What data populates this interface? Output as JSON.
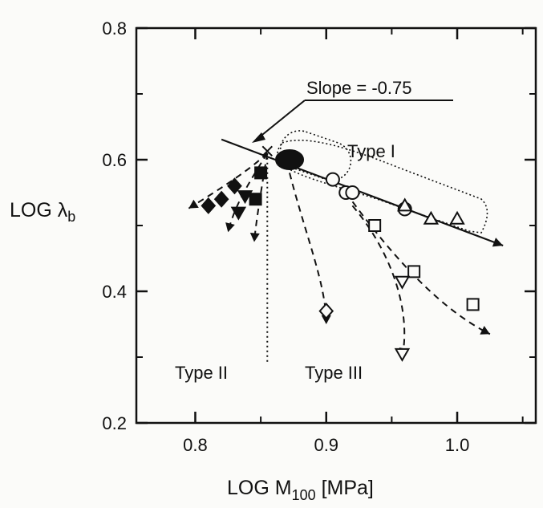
{
  "chart_data": {
    "type": "scatter",
    "title": "",
    "xlabel": "LOG M",
    "xlabel_sub": "100",
    "xlabel_unit": " [MPa]",
    "ylabel": "LOG λ",
    "ylabel_sub": "b",
    "xlim": [
      0.755,
      1.06
    ],
    "ylim": [
      0.2,
      0.8
    ],
    "x_ticks": [
      0.8,
      0.9,
      1.0
    ],
    "x_tick_labels": [
      "0.8",
      "0.9",
      "1.0"
    ],
    "y_ticks": [
      0.2,
      0.4,
      0.6,
      0.8
    ],
    "y_tick_labels": [
      "0.2",
      "0.4",
      "0.6",
      "0.8"
    ],
    "grid": false,
    "slope_label": "Slope = -0.75",
    "type_labels": {
      "type_i": "Type I",
      "type_ii": "Type II",
      "type_iii": "Type III"
    },
    "fit_line": {
      "slope": -0.75,
      "x": [
        0.82,
        1.035
      ],
      "y": [
        0.6308,
        0.4695
      ]
    },
    "type_ii_boundary_x": 0.855,
    "series": [
      {
        "marker": "ellipse-filled",
        "x": [
          0.872
        ],
        "y": [
          0.6
        ]
      },
      {
        "marker": "circle-open",
        "x": [
          0.905,
          0.915,
          0.92,
          0.96
        ],
        "y": [
          0.57,
          0.55,
          0.55,
          0.525
        ]
      },
      {
        "marker": "triangle-up-open",
        "x": [
          0.96,
          0.98,
          1.0
        ],
        "y": [
          0.53,
          0.51,
          0.51
        ]
      },
      {
        "marker": "square-open",
        "x": [
          0.937,
          0.967,
          1.012
        ],
        "y": [
          0.5,
          0.43,
          0.38
        ]
      },
      {
        "marker": "triangle-down-open",
        "x": [
          0.958,
          0.958
        ],
        "y": [
          0.415,
          0.305
        ]
      },
      {
        "marker": "diamond-open",
        "x": [
          0.9
        ],
        "y": [
          0.37
        ]
      },
      {
        "marker": "diamond-filled",
        "x": [
          0.81,
          0.82,
          0.83
        ],
        "y": [
          0.53,
          0.54,
          0.56
        ]
      },
      {
        "marker": "triangle-down-filled",
        "x": [
          0.833,
          0.838
        ],
        "y": [
          0.52,
          0.545
        ]
      },
      {
        "marker": "square-filled",
        "x": [
          0.846,
          0.85
        ],
        "y": [
          0.54,
          0.58
        ]
      }
    ],
    "trajectories": [
      {
        "x": [
          0.855,
          0.838,
          0.81,
          0.795
        ],
        "y": [
          0.61,
          0.578,
          0.545,
          0.526
        ]
      },
      {
        "x": [
          0.855,
          0.84,
          0.83,
          0.825
        ],
        "y": [
          0.61,
          0.562,
          0.53,
          0.49
        ]
      },
      {
        "x": [
          0.855,
          0.85,
          0.846,
          0.845
        ],
        "y": [
          0.61,
          0.55,
          0.5,
          0.475
        ]
      },
      {
        "x": [
          0.872,
          0.885,
          0.9,
          0.9
        ],
        "y": [
          0.58,
          0.48,
          0.41,
          0.35
        ]
      },
      {
        "x": [
          0.92,
          0.95,
          0.965,
          0.958
        ],
        "y": [
          0.53,
          0.46,
          0.37,
          0.3
        ]
      },
      {
        "x": [
          0.915,
          0.955,
          0.99,
          1.025
        ],
        "y": [
          0.55,
          0.44,
          0.37,
          0.335
        ]
      }
    ]
  }
}
